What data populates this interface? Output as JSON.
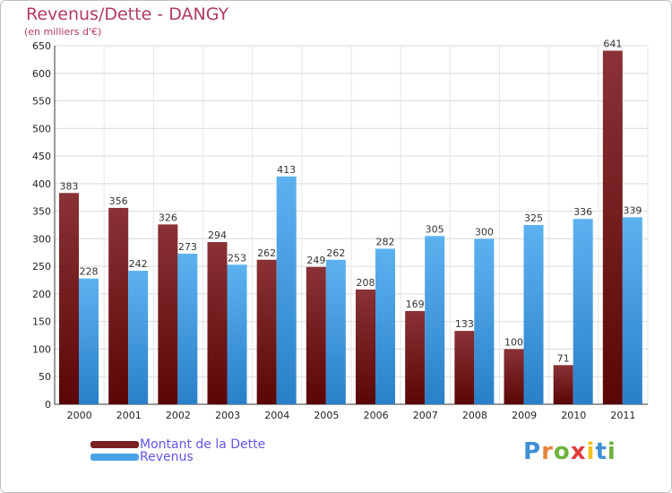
{
  "header": {
    "title": "Revenus/Dette - DANGY",
    "subtitle": "(en milliers d'€)"
  },
  "chart_data": {
    "type": "bar",
    "categories": [
      "2000",
      "2001",
      "2002",
      "2003",
      "2004",
      "2005",
      "2006",
      "2007",
      "2008",
      "2009",
      "2010",
      "2011"
    ],
    "series": [
      {
        "name": "Montant de la Dette",
        "values": [
          383,
          356,
          326,
          294,
          262,
          249,
          208,
          169,
          133,
          100,
          71,
          641
        ],
        "color": "#7a1f22"
      },
      {
        "name": "Revenus",
        "values": [
          228,
          242,
          273,
          253,
          413,
          262,
          282,
          305,
          300,
          325,
          336,
          339
        ],
        "color": "#4aa3e6"
      }
    ],
    "ylim": [
      0,
      650
    ],
    "yticks": [
      0,
      50,
      100,
      150,
      200,
      250,
      300,
      350,
      400,
      450,
      500,
      550,
      600,
      650
    ],
    "grid": true,
    "legend_position": "bottom-left",
    "xlabel": "",
    "ylabel": ""
  },
  "legend": {
    "items": [
      {
        "label": "Montant de la Dette",
        "color": "#7a1f22"
      },
      {
        "label": "Revenus",
        "color": "#4aa3e6"
      }
    ]
  },
  "logo": {
    "letters": [
      {
        "char": "P",
        "color": "#3f8fd6"
      },
      {
        "char": "r",
        "color": "#e8853a"
      },
      {
        "char": "o",
        "color": "#6cb33f"
      },
      {
        "char": "x",
        "color": "#e23b3b"
      },
      {
        "char": "i",
        "color": "#f0c21b"
      },
      {
        "char": "t",
        "color": "#3f8fd6"
      },
      {
        "char": "i",
        "color": "#6cb33f"
      }
    ]
  }
}
